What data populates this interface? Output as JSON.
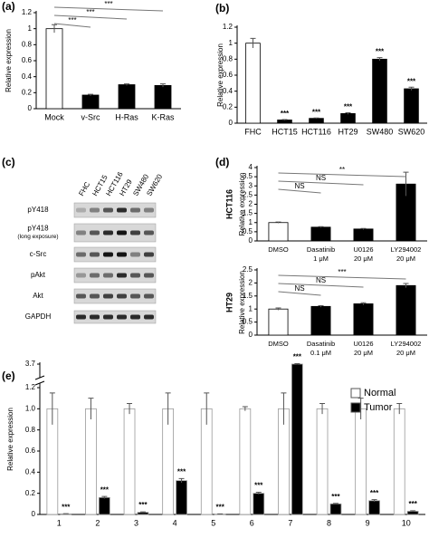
{
  "chart_data": [
    {
      "type": "bar",
      "panel": "(a)",
      "ylabel": "Relative expression",
      "categories": [
        [
          "Mock"
        ],
        [
          "v-Src"
        ],
        [
          "H-Ras"
        ],
        [
          "K-Ras"
        ]
      ],
      "values": [
        1.0,
        0.17,
        0.3,
        0.29
      ],
      "errors": [
        0.05,
        0.01,
        0.01,
        0.02
      ],
      "colors": [
        "#ffffff",
        "#000000",
        "#000000",
        "#000000"
      ],
      "ylim": [
        0,
        1.2
      ],
      "yticks": [
        0,
        0.2,
        0.4,
        0.6,
        0.8,
        1,
        1.2
      ],
      "significance": [
        "***",
        "***",
        "***"
      ]
    },
    {
      "type": "bar",
      "panel": "(b)",
      "ylabel": "Relative expression",
      "categories": [
        [
          "FHC"
        ],
        [
          "HCT15"
        ],
        [
          "HCT116"
        ],
        [
          "HT29"
        ],
        [
          "SW480"
        ],
        [
          "SW620"
        ]
      ],
      "values": [
        1.0,
        0.04,
        0.06,
        0.12,
        0.8,
        0.43
      ],
      "errors": [
        0.06,
        0.005,
        0.005,
        0.01,
        0.02,
        0.02
      ],
      "colors": [
        "#ffffff",
        "#000000",
        "#000000",
        "#000000",
        "#000000",
        "#000000"
      ],
      "ylim": [
        0,
        1.2
      ],
      "yticks": [
        0,
        0.2,
        0.4,
        0.6,
        0.8,
        1,
        1.2
      ],
      "value_labels": [
        null,
        "***",
        "***",
        "***",
        "***",
        "***"
      ]
    },
    {
      "type": "bar",
      "panel": "(d)",
      "title": "HCT116",
      "ylabel": "Relative expression",
      "categories": [
        [
          "DMSO"
        ],
        [
          "Dasatinib",
          "1 μM"
        ],
        [
          "U0126",
          "20 μM"
        ],
        [
          "LY294002",
          "20 μM"
        ]
      ],
      "values": [
        1.0,
        0.75,
        0.65,
        3.1
      ],
      "errors": [
        0.03,
        0.03,
        0.03,
        0.65
      ],
      "colors": [
        "#ffffff",
        "#000000",
        "#000000",
        "#000000"
      ],
      "ylim": [
        0,
        4
      ],
      "yticks": [
        0,
        0.5,
        1,
        1.5,
        2,
        2.5,
        3,
        3.5,
        4
      ],
      "significance": [
        "NS",
        "NS",
        "**"
      ]
    },
    {
      "type": "bar",
      "title": "HT29",
      "ylabel": "Relative expression",
      "categories": [
        [
          "DMSO"
        ],
        [
          "Dasatinib",
          "0.1 μM"
        ],
        [
          "U0126",
          "20 μM"
        ],
        [
          "LY294002",
          "20 μM"
        ]
      ],
      "values": [
        1.0,
        1.1,
        1.2,
        1.9
      ],
      "errors": [
        0.04,
        0.03,
        0.04,
        0.08
      ],
      "colors": [
        "#ffffff",
        "#000000",
        "#000000",
        "#000000"
      ],
      "ylim": [
        0,
        2.5
      ],
      "yticks": [
        0,
        0.5,
        1,
        1.5,
        2,
        2.5
      ],
      "significance": [
        "NS",
        "NS",
        "***"
      ]
    },
    {
      "type": "grouped-bar",
      "panel": "(e)",
      "ylabel": "Relative expression",
      "broken_axis": true,
      "categories": [
        [
          "1"
        ],
        [
          "2"
        ],
        [
          "3"
        ],
        [
          "4"
        ],
        [
          "5"
        ],
        [
          "6"
        ],
        [
          "7"
        ],
        [
          "8"
        ],
        [
          "9"
        ],
        [
          "10"
        ]
      ],
      "series": [
        {
          "name": "Normal",
          "color": "#ffffff",
          "values": [
            1,
            1,
            1,
            1,
            1,
            1,
            1,
            1,
            1,
            1
          ],
          "errors": [
            0.15,
            0.1,
            0.05,
            0.15,
            0.15,
            0.02,
            0.15,
            0.05,
            0.1,
            0.05
          ]
        },
        {
          "name": "Tumor",
          "color": "#000000",
          "values": [
            0.005,
            0.16,
            0.02,
            0.32,
            0.003,
            0.2,
            3.7,
            0.1,
            0.13,
            0.03
          ],
          "errors": [
            0.002,
            0.01,
            0.005,
            0.02,
            0.002,
            0.01,
            0.05,
            0.005,
            0.01,
            0.005
          ],
          "value_labels": [
            "***",
            "***",
            "***",
            "***",
            "***",
            "***",
            "***",
            "***",
            "***",
            "***"
          ]
        }
      ],
      "ylim": [
        0,
        3.7
      ],
      "yticks": [
        0,
        0.2,
        0.4,
        0.6,
        0.8,
        {
          "value": 1,
          "label": "1.0"
        },
        1.2,
        3.7
      ],
      "legend": "top-right"
    }
  ],
  "blot": {
    "panel": "(c)",
    "lanes": [
      "FHC",
      "HCT15",
      "HCT116",
      "HT29",
      "SW480",
      "SW620"
    ],
    "rows": [
      [
        "pY418"
      ],
      [
        "pY418",
        "(long exposure)"
      ],
      [
        "c-Src"
      ],
      [
        "pAkt"
      ],
      [
        "Akt"
      ],
      [
        "GAPDH"
      ]
    ]
  }
}
